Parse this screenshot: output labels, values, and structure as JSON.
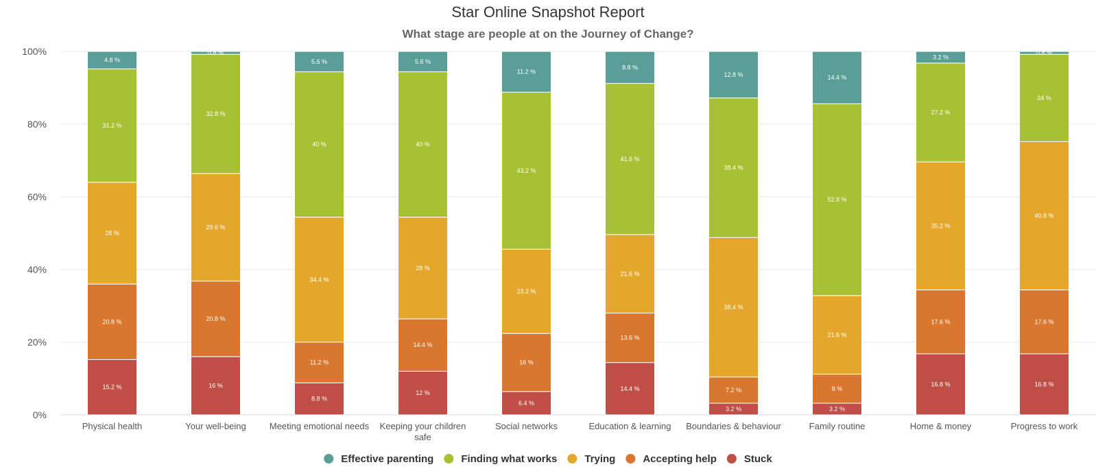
{
  "chart_data": {
    "type": "bar",
    "stacked": true,
    "title": "Star Online Snapshot Report",
    "subtitle": "What stage are people at on the Journey of Change?",
    "xlabel": "",
    "ylabel": "",
    "ylim": [
      0,
      100
    ],
    "yticks": [
      "0%",
      "20%",
      "40%",
      "60%",
      "80%",
      "100%"
    ],
    "grid": true,
    "legend_position": "bottom",
    "categories": [
      [
        "Physical health"
      ],
      [
        "Your well-being"
      ],
      [
        "Meeting emotional needs"
      ],
      [
        "Keeping your children",
        "safe"
      ],
      [
        "Social networks"
      ],
      [
        "Education & learning"
      ],
      [
        "Boundaries & behaviour"
      ],
      [
        "Family routine"
      ],
      [
        "Home & money"
      ],
      [
        "Progress to work"
      ]
    ],
    "series": [
      {
        "name": "Stuck",
        "color": "#bf4e46",
        "values": [
          15.2,
          16,
          8.8,
          12,
          6.4,
          14.4,
          3.2,
          3.2,
          16.8,
          16.8
        ],
        "labels": [
          "15.2 %",
          "16 %",
          "8.8 %",
          "12 %",
          "6.4 %",
          "14.4 %",
          "3.2 %",
          "3.2 %",
          "16.8 %",
          "16.8 %"
        ]
      },
      {
        "name": "Accepting help",
        "color": "#d9772f",
        "values": [
          20.8,
          20.8,
          11.2,
          14.4,
          16,
          13.6,
          7.2,
          8,
          17.6,
          17.6
        ],
        "labels": [
          "20.8 %",
          "20.8 %",
          "11.2 %",
          "14.4 %",
          "16 %",
          "13.6 %",
          "7.2 %",
          "8 %",
          "17.6 %",
          "17.6 %"
        ]
      },
      {
        "name": "Trying",
        "color": "#e4a72b",
        "values": [
          28,
          29.6,
          34.4,
          28,
          23.2,
          21.6,
          38.4,
          21.6,
          35.2,
          40.8
        ],
        "labels": [
          "28 %",
          "29.6 %",
          "34.4 %",
          "28 %",
          "23.2 %",
          "21.6 %",
          "38.4 %",
          "21.6 %",
          "35.2 %",
          "40.8 %"
        ]
      },
      {
        "name": "Finding what works",
        "color": "#a8c034",
        "values": [
          31.2,
          32.8,
          40,
          40,
          43.2,
          41.6,
          38.4,
          52.8,
          27.2,
          24
        ],
        "labels": [
          "31.2 %",
          "32.8 %",
          "40 %",
          "40 %",
          "43.2 %",
          "41.6 %",
          "38.4 %",
          "52.8 %",
          "27.2 %",
          "24 %"
        ]
      },
      {
        "name": "Effective parenting",
        "color": "#5a9e98",
        "values": [
          4.8,
          0.8,
          5.6,
          5.6,
          11.2,
          8.8,
          12.8,
          14.4,
          3.2,
          0.8
        ],
        "labels": [
          "4.8 %",
          "0.8 %",
          "5.6 %",
          "5.6 %",
          "11.2 %",
          "8.8 %",
          "12.8 %",
          "14.4 %",
          "3.2 %",
          "0.8 %"
        ]
      }
    ],
    "legend_order": [
      "Effective parenting",
      "Finding what works",
      "Trying",
      "Accepting help",
      "Stuck"
    ]
  },
  "colors": {
    "grid": "#e4e4e4",
    "axis": "#ccd6eb"
  }
}
